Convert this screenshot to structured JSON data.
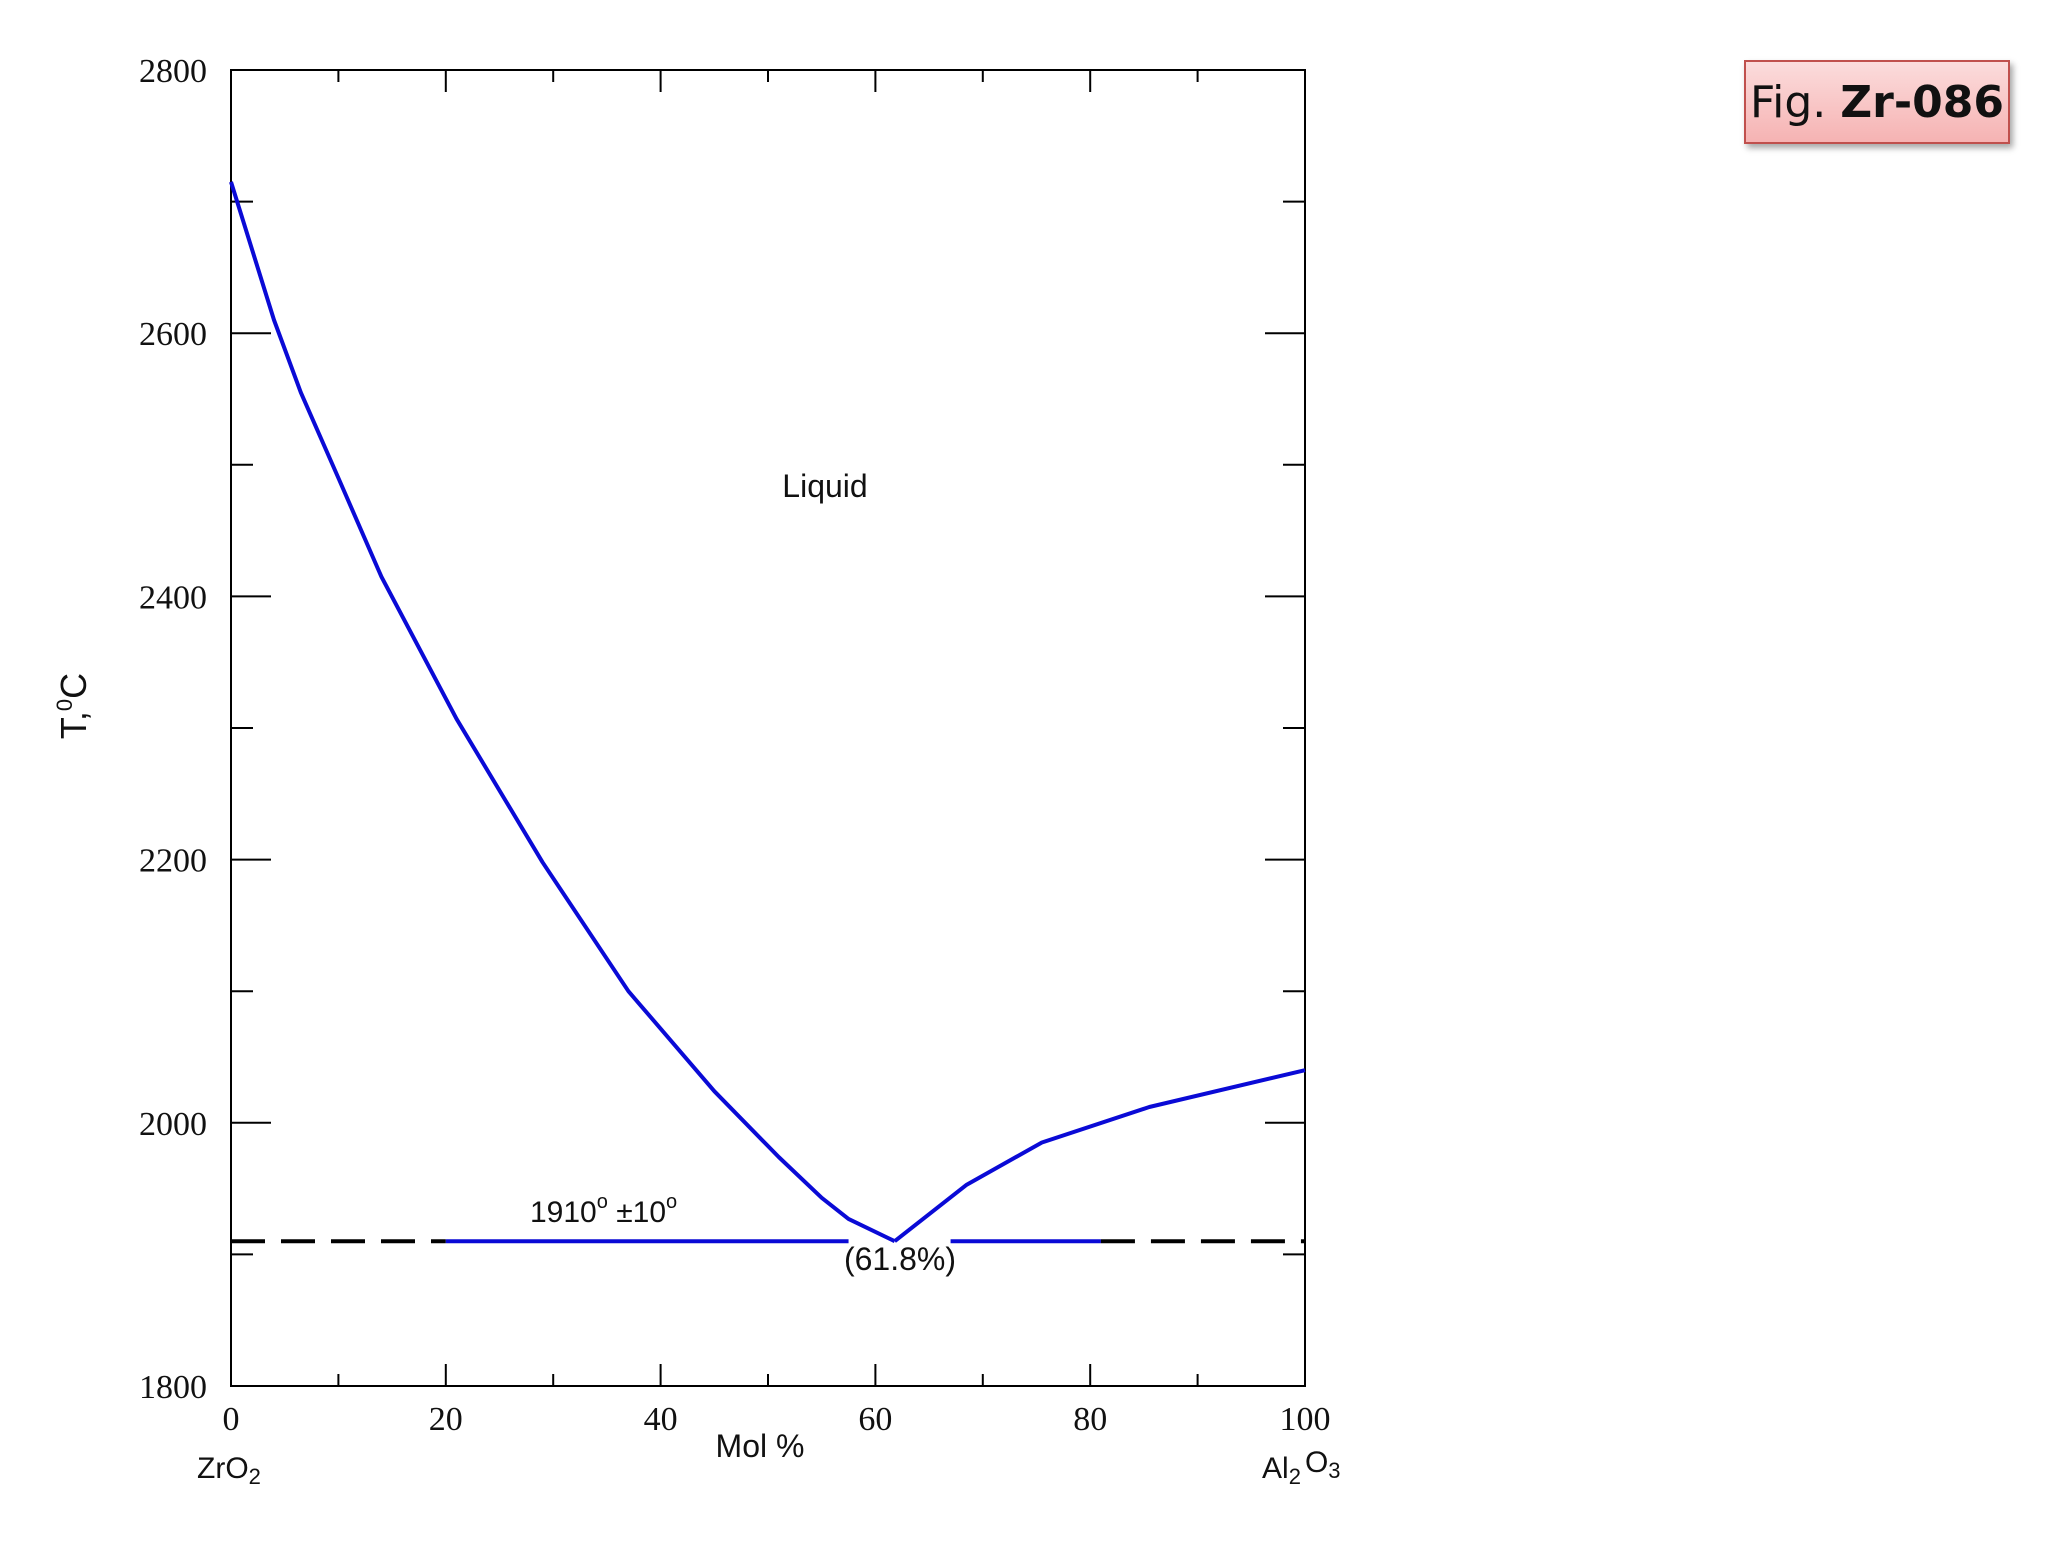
{
  "figure_label": {
    "prefix": "Fig. ",
    "code": "Zr-086"
  },
  "chart_data": {
    "type": "line",
    "xlabel": "Mol %",
    "ylabel": "T,°C",
    "ylabel_main": "T,",
    "ylabel_sup": "0",
    "ylabel_unit": "C",
    "xlim": [
      0,
      100
    ],
    "ylim": [
      1800,
      2800
    ],
    "x_ticks": [
      "0",
      "20",
      "40",
      "60",
      "80",
      "100"
    ],
    "y_ticks": [
      "1800",
      "2000",
      "2200",
      "2400",
      "2600",
      "2800"
    ],
    "x_minor_ticks": [
      10,
      30,
      50,
      70,
      90
    ],
    "y_minor_ticks": [
      1900,
      2100,
      2300,
      2500,
      2700
    ],
    "end_members": {
      "left": {
        "base": "ZrO",
        "sub": "2"
      },
      "right": {
        "base1": "Al",
        "sub1": "2",
        "base2": "O",
        "sub2": "3"
      }
    },
    "region_label": "Liquid",
    "eutectic": {
      "temperature": 1910,
      "label_main": "1910",
      "label_sup1": "o",
      "label_pm": " ±10",
      "label_sup2": "o",
      "composition_label": "(61.8%)",
      "x": 61.8
    },
    "series": [
      {
        "color": "#0a0ad6",
        "points": [
          [
            0,
            2715
          ],
          [
            4,
            2610
          ],
          [
            6.5,
            2555
          ],
          [
            10,
            2490
          ],
          [
            14,
            2415
          ],
          [
            21,
            2307
          ],
          [
            29,
            2198
          ],
          [
            37,
            2100
          ],
          [
            45,
            2024
          ],
          [
            51,
            1974
          ],
          [
            55,
            1943
          ],
          [
            57.5,
            1927
          ],
          [
            61.8,
            1910
          ]
        ]
      },
      {
        "color": "#0a0ad6",
        "points": [
          [
            61.8,
            1910
          ],
          [
            68.5,
            1953
          ],
          [
            75.5,
            1985
          ],
          [
            85.5,
            2012
          ],
          [
            100,
            2040
          ]
        ]
      }
    ],
    "eutectic_line_segments": [
      {
        "style": "dashed",
        "color": "#000000",
        "x": [
          0,
          20
        ]
      },
      {
        "style": "solid",
        "color": "#0a0ad6",
        "x": [
          20,
          57.5
        ]
      },
      {
        "style": "solid",
        "color": "#0a0ad6",
        "x": [
          67,
          81
        ]
      },
      {
        "style": "dashed",
        "color": "#000000",
        "x": [
          81,
          100
        ]
      }
    ]
  }
}
